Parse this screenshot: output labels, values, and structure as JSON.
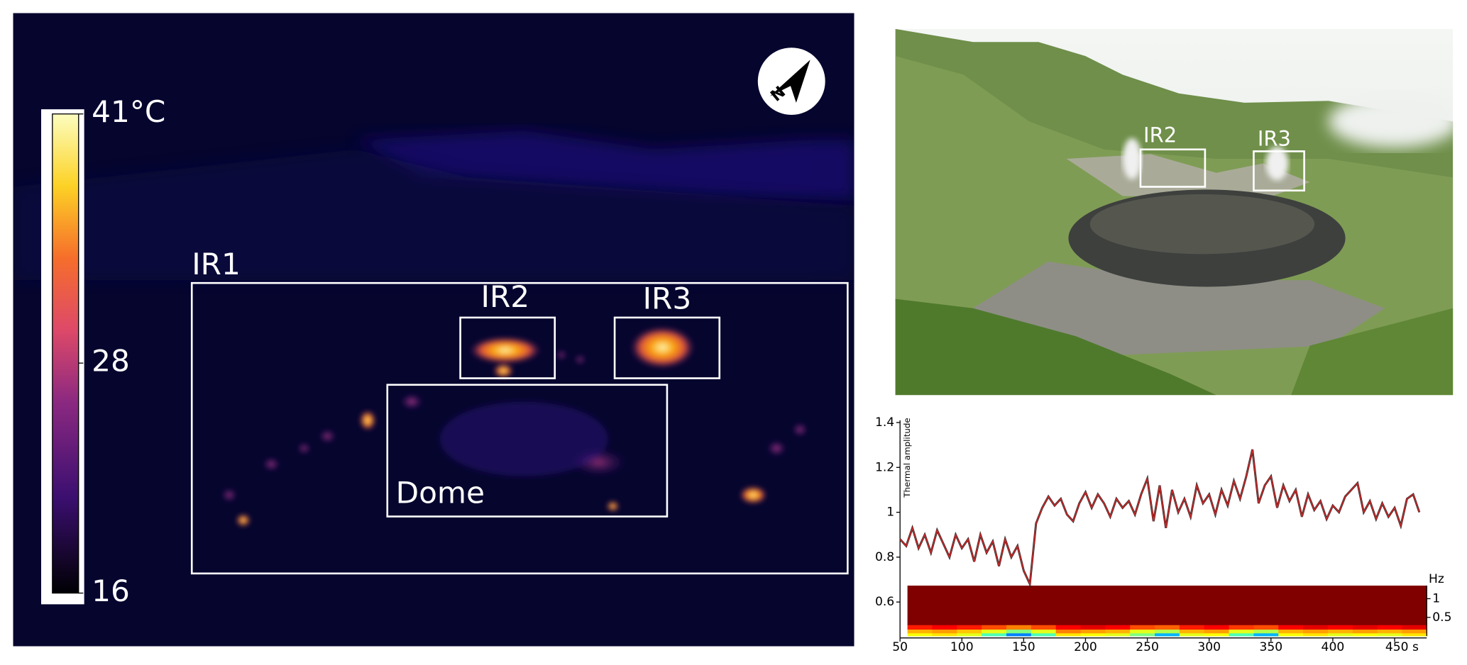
{
  "thermal_image": {
    "regions": [
      "IR1",
      "IR2",
      "IR3",
      "Dome"
    ],
    "compass": "N",
    "colorbar": {
      "lim": [
        16,
        41
      ],
      "ticks": [
        {
          "value": 41,
          "label": "41°C"
        },
        28,
        16
      ]
    }
  },
  "photo": {
    "regions": [
      "IR2",
      "IR3"
    ]
  },
  "chart_data": [
    {
      "type": "line",
      "ylabel": "Thermal amplitude",
      "x": [
        50,
        55,
        60,
        65,
        70,
        75,
        80,
        85,
        90,
        95,
        100,
        105,
        110,
        115,
        120,
        125,
        130,
        135,
        140,
        145,
        150,
        155,
        160,
        165,
        170,
        175,
        180,
        185,
        190,
        195,
        200,
        205,
        210,
        215,
        220,
        225,
        230,
        235,
        240,
        245,
        250,
        255,
        260,
        265,
        270,
        275,
        280,
        285,
        290,
        295,
        300,
        305,
        310,
        315,
        320,
        325,
        330,
        335,
        340,
        345,
        350,
        355,
        360,
        365,
        370,
        375,
        380,
        385,
        390,
        395,
        400,
        405,
        410,
        415,
        420,
        425,
        430,
        435,
        440,
        445,
        450,
        455,
        460,
        465,
        470
      ],
      "series": [
        {
          "color": "#c62a2a",
          "values": [
            0.88,
            0.85,
            0.93,
            0.84,
            0.9,
            0.82,
            0.92,
            0.86,
            0.8,
            0.9,
            0.84,
            0.88,
            0.78,
            0.9,
            0.82,
            0.87,
            0.76,
            0.88,
            0.8,
            0.85,
            0.74,
            0.68,
            0.95,
            1.02,
            1.07,
            1.03,
            1.06,
            0.99,
            0.96,
            1.04,
            1.09,
            1.02,
            1.08,
            1.04,
            0.98,
            1.06,
            1.02,
            1.05,
            0.99,
            1.08,
            1.15,
            0.96,
            1.12,
            0.93,
            1.1,
            1.0,
            1.06,
            0.98,
            1.12,
            1.04,
            1.08,
            0.99,
            1.1,
            1.03,
            1.14,
            1.06,
            1.16,
            1.28,
            1.04,
            1.12,
            1.16,
            1.02,
            1.12,
            1.05,
            1.1,
            0.98,
            1.08,
            1.01,
            1.05,
            0.97,
            1.03,
            1.0,
            1.07,
            1.1,
            1.13,
            1.0,
            1.05,
            0.97,
            1.04,
            0.98,
            1.02,
            0.94,
            1.06,
            1.08,
            1.0
          ]
        }
      ],
      "xlim": [
        50,
        476
      ],
      "xticks": [
        50,
        100,
        150,
        200,
        250,
        300,
        350,
        400,
        {
          "value": 450,
          "label": "450 s"
        }
      ],
      "ylim": [
        0.44,
        1.41
      ],
      "yticks": [
        0.6,
        0.8,
        1,
        1.2,
        1.4
      ]
    },
    {
      "type": "heatmap",
      "ylabel": "Hz",
      "colormap": "jet",
      "xlim": [
        50,
        476
      ],
      "x_bins": [
        56,
        76,
        96,
        116,
        136,
        156,
        176,
        196,
        216,
        236,
        256,
        276,
        296,
        316,
        336,
        356,
        376,
        396,
        416,
        436,
        456,
        476
      ],
      "y_bins": [
        0,
        0.08,
        0.18,
        0.3,
        1.35
      ],
      "ylim": [
        0,
        1.35
      ],
      "yticks": [
        1,
        0.5
      ],
      "z": [
        [
          0.62,
          0.65,
          0.6,
          0.45,
          0.25,
          0.45,
          0.65,
          0.62,
          0.6,
          0.5,
          0.3,
          0.6,
          0.62,
          0.45,
          0.3,
          0.62,
          0.65,
          0.6,
          0.62,
          0.6,
          0.65
        ],
        [
          0.7,
          0.72,
          0.68,
          0.6,
          0.5,
          0.6,
          0.75,
          0.72,
          0.7,
          0.6,
          0.55,
          0.7,
          0.72,
          0.6,
          0.55,
          0.7,
          0.72,
          0.7,
          0.72,
          0.7,
          0.72
        ],
        [
          0.85,
          0.88,
          0.85,
          0.8,
          0.75,
          0.8,
          0.88,
          0.9,
          0.88,
          0.8,
          0.78,
          0.85,
          0.88,
          0.82,
          0.8,
          0.88,
          0.9,
          0.88,
          0.9,
          0.88,
          0.9
        ],
        [
          1,
          1,
          1,
          1,
          1,
          1,
          1,
          1,
          1,
          1,
          1,
          1,
          1,
          1,
          1,
          1,
          1,
          1,
          1,
          1,
          1
        ]
      ]
    }
  ]
}
